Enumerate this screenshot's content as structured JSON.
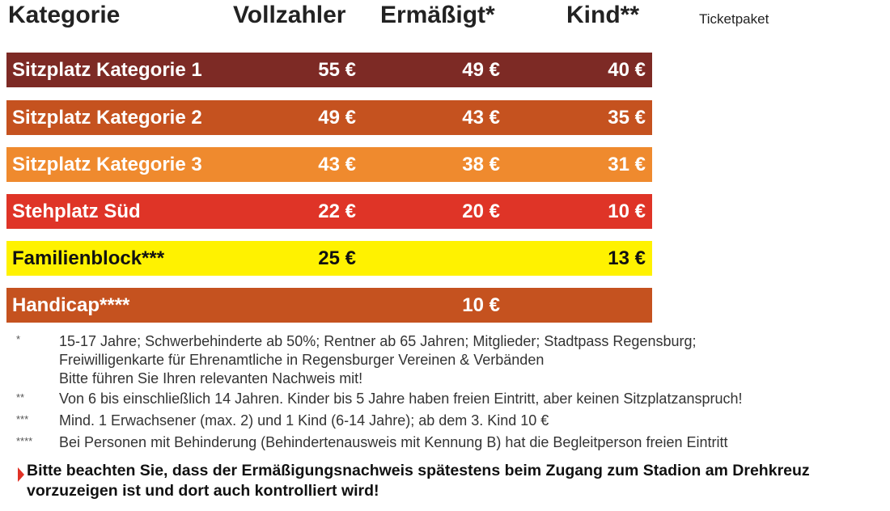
{
  "headers": {
    "category": "Kategorie",
    "full": "Vollzahler",
    "reduced": "Ermäßigt*",
    "child": "Kind**",
    "package": "Ticketpaket"
  },
  "rows": [
    {
      "label": "Sitzplatz Kategorie 1",
      "full": "55 €",
      "reduced": "49 €",
      "child": "40 €",
      "color": "#7d2a25"
    },
    {
      "label": "Sitzplatz Kategorie 2",
      "full": "49 €",
      "reduced": "43 €",
      "child": "35 €",
      "color": "#c5521f"
    },
    {
      "label": "Sitzplatz Kategorie 3",
      "full": "43 €",
      "reduced": "38 €",
      "child": "31 €",
      "color": "#ef8a2e"
    },
    {
      "label": "Stehplatz Süd",
      "full": "22 €",
      "reduced": "20 €",
      "child": "10 €",
      "color": "#df3427"
    },
    {
      "label": "Familienblock***",
      "full": "25 €",
      "reduced": "",
      "child": "13 €",
      "color": "#fff200"
    },
    {
      "label": "Handicap****",
      "full": "",
      "reduced": "10 €",
      "child": "",
      "color": "#c5521f"
    }
  ],
  "footnotes": [
    {
      "mark": "*",
      "lines": [
        "15-17 Jahre; Schwerbehinderte ab 50%; Rentner ab 65 Jahren; Mitglieder; Stadtpass Regensburg;",
        "Freiwilligenkarte für Ehrenamtliche in Regensburger Vereinen & Verbänden",
        "Bitte führen Sie Ihren relevanten Nachweis mit!"
      ]
    },
    {
      "mark": "**",
      "lines": [
        "Von 6 bis einschließlich 14 Jahren. Kinder bis 5 Jahre haben freien Eintritt, aber keinen Sitzplatzanspruch!"
      ]
    },
    {
      "mark": "***",
      "lines": [
        "Mind. 1 Erwachsener (max. 2) und 1 Kind (6-14 Jahre); ab dem 3. Kind 10 €"
      ]
    },
    {
      "mark": "****",
      "lines": [
        "Bei Personen mit Behinderung (Behindertenausweis mit Kennung B) hat die Begleitperson freien Eintritt"
      ]
    }
  ],
  "notice": [
    "Bitte beachten Sie, dass der Ermäßigungsnachweis spätestens beim Zugang zum Stadion am Drehkreuz",
    "vorzuzeigen ist und dort auch kontrolliert wird!"
  ]
}
